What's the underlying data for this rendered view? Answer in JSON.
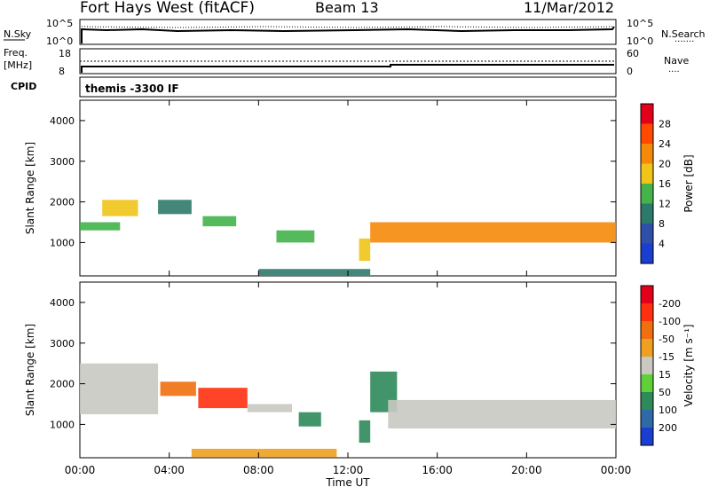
{
  "header": {
    "station": "Fort Hays West (fitACF)",
    "beam": "Beam 13",
    "date": "11/Mar/2012"
  },
  "strips": {
    "top": {
      "left_label": "N.Sky",
      "right_label": "N.Search",
      "left_ticks": [
        "10^5",
        "10^0"
      ],
      "right_ticks": [
        "10^5",
        "10^0"
      ]
    },
    "freq": {
      "left_label_1": "Freq.",
      "left_label_2": "[MHz]",
      "right_label": "Nave",
      "left_ticks": [
        "18",
        "8"
      ],
      "right_ticks": [
        "60",
        "0"
      ]
    },
    "cpid": {
      "label": "CPID",
      "text": "themis -3300 IF"
    }
  },
  "chart_data": [
    {
      "type": "heatmap",
      "title": "Power",
      "ylabel": "Slant Range [km]",
      "xlabel": "",
      "xlim": [
        "00:00",
        "24:00"
      ],
      "ylim": [
        180,
        4500
      ],
      "yticks": [
        1000,
        2000,
        3000,
        4000
      ],
      "colorbar": {
        "label": "Power [dB]",
        "levels": [
          4,
          8,
          12,
          16,
          20,
          24,
          28
        ],
        "colors": [
          "#1a3fd0",
          "#2f4fa8",
          "#2e7a6a",
          "#43b34a",
          "#f0c419",
          "#f58a0a",
          "#ff4a00",
          "#e4001a"
        ]
      },
      "regions": [
        {
          "t": [
            0.0,
            1.8
          ],
          "r": [
            1300,
            1500
          ],
          "level": 12
        },
        {
          "t": [
            1.0,
            2.6
          ],
          "r": [
            1650,
            2050
          ],
          "level": 16
        },
        {
          "t": [
            3.5,
            5.0
          ],
          "r": [
            1700,
            2050
          ],
          "level": 8
        },
        {
          "t": [
            5.5,
            7.0
          ],
          "r": [
            1400,
            1650
          ],
          "level": 12
        },
        {
          "t": [
            8.8,
            10.5
          ],
          "r": [
            1000,
            1300
          ],
          "level": 12
        },
        {
          "t": [
            12.5,
            13.0
          ],
          "r": [
            550,
            1100
          ],
          "level": 16
        },
        {
          "t": [
            13.0,
            24.0
          ],
          "r": [
            1000,
            1500
          ],
          "level": 20
        },
        {
          "t": [
            8.0,
            13.0
          ],
          "r": [
            200,
            350
          ],
          "level": 8
        }
      ]
    },
    {
      "type": "heatmap",
      "title": "Velocity",
      "ylabel": "Slant Range [km]",
      "xlabel": "Time UT",
      "xlim": [
        "00:00",
        "24:00"
      ],
      "xticks": [
        "00:00",
        "04:00",
        "08:00",
        "12:00",
        "16:00",
        "20:00",
        "00:00"
      ],
      "ylim": [
        180,
        4500
      ],
      "yticks": [
        1000,
        2000,
        3000,
        4000
      ],
      "colorbar": {
        "label": "Velocity [m s⁻¹]",
        "levels": [
          200,
          100,
          50,
          15,
          -15,
          -50,
          -100,
          -200
        ],
        "colors": [
          "#1a3fd0",
          "#2f6aa8",
          "#2e8a5a",
          "#5fd038",
          "#c9c9c2",
          "#f0a020",
          "#f07010",
          "#ff3010",
          "#e4001a"
        ]
      },
      "regions": [
        {
          "t": [
            0.0,
            3.5
          ],
          "r": [
            1250,
            2500
          ],
          "level": 0
        },
        {
          "t": [
            3.6,
            5.2
          ],
          "r": [
            1700,
            2050
          ],
          "level": -100
        },
        {
          "t": [
            5.3,
            7.5
          ],
          "r": [
            1400,
            1900
          ],
          "level": -200
        },
        {
          "t": [
            7.5,
            9.5
          ],
          "r": [
            1300,
            1500
          ],
          "level": 0
        },
        {
          "t": [
            9.8,
            10.8
          ],
          "r": [
            950,
            1300
          ],
          "level": 50
        },
        {
          "t": [
            12.5,
            13.0
          ],
          "r": [
            550,
            1100
          ],
          "level": 50
        },
        {
          "t": [
            13.0,
            14.2
          ],
          "r": [
            1300,
            2300
          ],
          "level": 50
        },
        {
          "t": [
            13.8,
            24.0
          ],
          "r": [
            900,
            1600
          ],
          "level": 0
        },
        {
          "t": [
            5.0,
            11.5
          ],
          "r": [
            200,
            400
          ],
          "level": -50
        }
      ]
    }
  ]
}
